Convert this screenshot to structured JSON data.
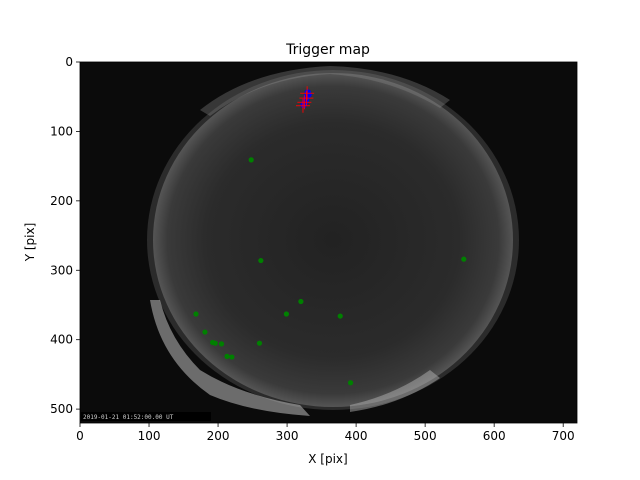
{
  "chart_data": {
    "type": "scatter",
    "title": "Trigger map",
    "xlabel": "X [pix]",
    "ylabel": "Y [pix]",
    "xlim": [
      0,
      720
    ],
    "ylim": [
      520,
      0
    ],
    "y_inverted": true,
    "xticks": [
      0,
      100,
      200,
      300,
      400,
      500,
      600,
      700
    ],
    "yticks": [
      0,
      100,
      200,
      300,
      400,
      500
    ],
    "grid": false,
    "legend": "none",
    "background": "all-sky fisheye camera image",
    "timestamp_text": "2019-01-21 01:52:00.00 UT",
    "series": [
      {
        "color": "#008000",
        "marker": "circle",
        "points": [
          [
            248,
            141
          ],
          [
            262,
            286
          ],
          [
            556,
            284
          ],
          [
            320,
            345
          ],
          [
            299,
            363
          ],
          [
            377,
            366
          ],
          [
            168,
            363
          ],
          [
            181,
            389
          ],
          [
            192,
            404
          ],
          [
            196,
            405
          ],
          [
            205,
            406
          ],
          [
            213,
            424
          ],
          [
            220,
            425
          ],
          [
            260,
            405
          ],
          [
            392,
            462
          ]
        ]
      },
      {
        "color": "#0000ff",
        "marker": "circle",
        "points": [
          [
            330,
            44
          ],
          [
            331,
            47
          ],
          [
            329,
            49
          ],
          [
            328,
            52
          ],
          [
            327,
            55
          ],
          [
            326,
            58
          ],
          [
            325,
            60
          ],
          [
            324,
            62
          ]
        ]
      },
      {
        "color": "#ff0000",
        "marker": "plus",
        "points": [
          [
            329,
            45
          ],
          [
            328,
            52
          ],
          [
            325,
            58
          ],
          [
            323,
            63
          ]
        ]
      }
    ]
  }
}
